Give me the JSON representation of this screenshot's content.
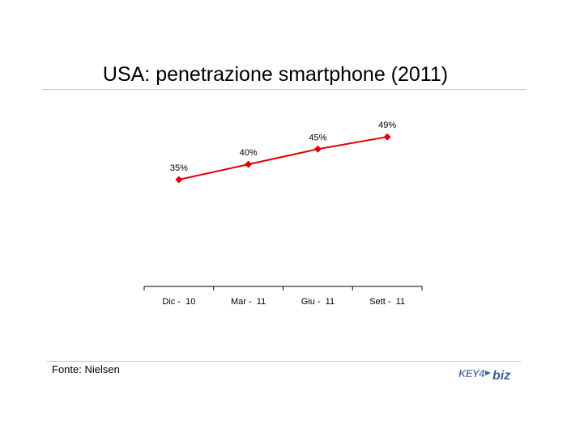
{
  "title": "USA: penetrazione smartphone (2011)",
  "source": "Fonte: Nielsen",
  "logo": {
    "text_left": "KEY4",
    "text_right": "biz",
    "color": "#3b5ea8"
  },
  "colors": {
    "series": "#e00000",
    "rule": "#c8c8c8",
    "axis": "#000000"
  },
  "chart_data": {
    "type": "line",
    "categories": [
      "Dic -  10",
      "Mar -  11",
      "Giu -  11",
      "Sett -  11"
    ],
    "series": [
      {
        "values": [
          35,
          40,
          45,
          49
        ],
        "labels": [
          "35%",
          "40%",
          "45%",
          "49%"
        ],
        "marker": "diamond"
      }
    ],
    "ylim": [
      0,
      70
    ],
    "grid": false,
    "legend": "none"
  }
}
